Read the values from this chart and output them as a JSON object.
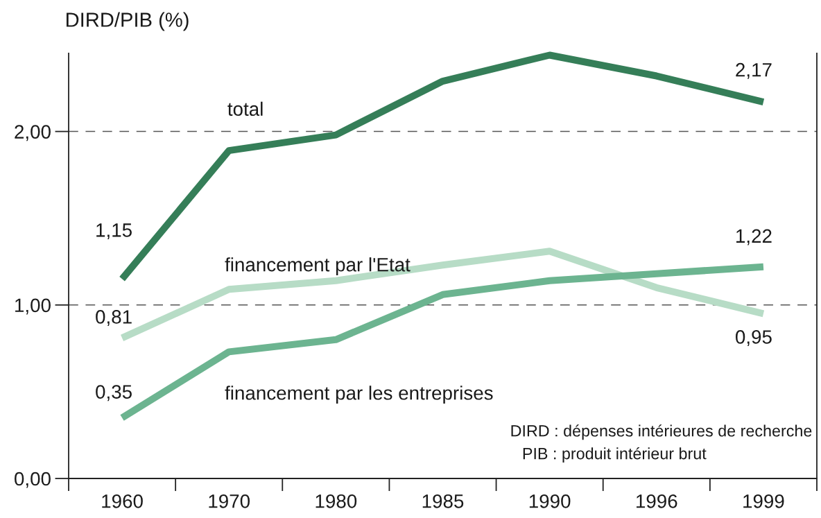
{
  "chart_data": {
    "type": "line",
    "ylabel": "DIRD/PIB (%)",
    "categories": [
      "1960",
      "1970",
      "1980",
      "1985",
      "1990",
      "1996",
      "1999"
    ],
    "series": [
      {
        "name": "total",
        "color": "#357e58",
        "values": [
          1.15,
          1.89,
          1.98,
          2.29,
          2.44,
          2.32,
          2.17
        ],
        "value_labels": [
          "1,15",
          null,
          null,
          null,
          null,
          null,
          "2,17"
        ]
      },
      {
        "name": "financement par l'Etat",
        "color": "#b7dcc6",
        "values": [
          0.81,
          1.09,
          1.14,
          1.23,
          1.31,
          1.1,
          0.95
        ],
        "value_labels": [
          "0,81",
          null,
          null,
          null,
          null,
          null,
          "0,95"
        ]
      },
      {
        "name": "financement par les entreprises",
        "color": "#6cb490",
        "values": [
          0.35,
          0.73,
          0.8,
          1.06,
          1.14,
          1.18,
          1.22
        ],
        "value_labels": [
          "0,35",
          null,
          null,
          null,
          null,
          null,
          "1,22"
        ]
      }
    ],
    "ylim": [
      0,
      2.45
    ],
    "yticks": [
      {
        "value": 0,
        "label": "0,00"
      },
      {
        "value": 1,
        "label": "1,00"
      },
      {
        "value": 2,
        "label": "2,00"
      }
    ],
    "grid": "y",
    "legend": false,
    "annotations": [
      "DIRD : dépenses intérieures de recherche",
      "PIB : produit intérieur brut"
    ]
  }
}
